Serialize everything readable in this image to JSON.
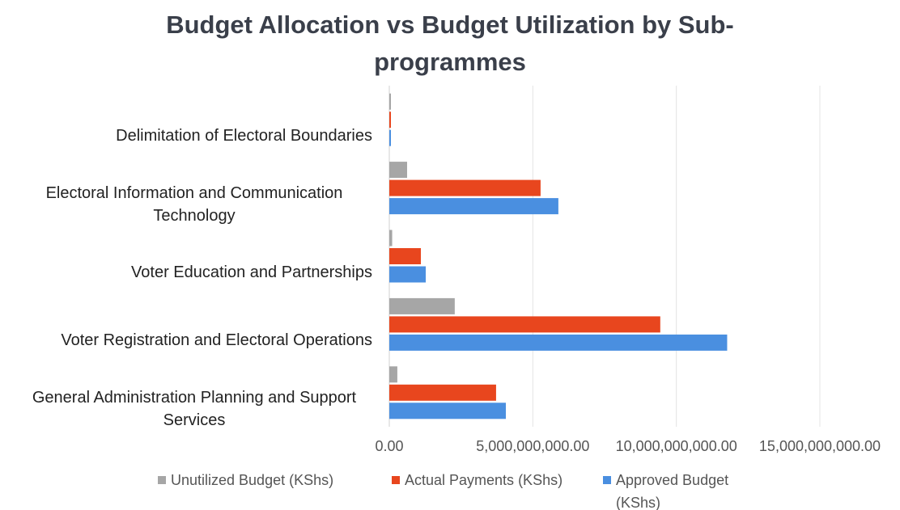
{
  "chart_data": {
    "type": "hbar",
    "title": "Budget Allocation vs Budget Utilization by Sub-programmes",
    "categories": [
      "Delimitation of Electoral Boundaries",
      "Electoral Information and Communication Technology",
      "Voter Education and Partnerships",
      "Voter Registration and Electoral Operations",
      "General Administration Planning and Support Services"
    ],
    "series": [
      {
        "name": "Unutilized Budget (KShs)",
        "color": "#a6a6a6",
        "values": [
          0,
          620000000,
          100000000,
          2280000000,
          280000000
        ]
      },
      {
        "name": "Actual Payments (KShs)",
        "color": "#e8461e",
        "values": [
          50000000,
          5270000000,
          1100000000,
          9440000000,
          3720000000
        ]
      },
      {
        "name": "Approved Budget (KShs)",
        "color": "#4a8fe0",
        "values": [
          50000000,
          5890000000,
          1270000000,
          11770000000,
          4060000000
        ]
      }
    ],
    "xlim": [
      0,
      15000000000
    ],
    "xticks": [
      {
        "value": 0,
        "label": "0.00"
      },
      {
        "value": 5000000000,
        "label": "5,000,000,000.00"
      },
      {
        "value": 10000000000,
        "label": "10,000,000,000.00"
      },
      {
        "value": 15000000000,
        "label": "15,000,000,000.00"
      }
    ],
    "grid": true,
    "legend": "bottom"
  }
}
